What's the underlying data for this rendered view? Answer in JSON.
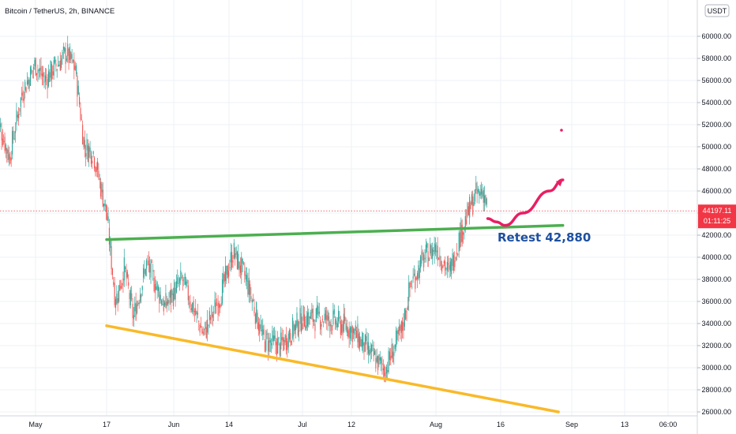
{
  "header": {
    "title": "Bitcoin / TetherUS, 2h, BINANCE"
  },
  "currency_badge": "USDT",
  "price_tag": {
    "price": "44197.11",
    "countdown": "01:11:25",
    "color": "#f23645"
  },
  "annotation": {
    "text": "Retest 42,880"
  },
  "colors": {
    "up_candle": "#26a69a",
    "down_candle": "#ef5350",
    "green_line": "#4caf50",
    "yellow_line": "#f9b928",
    "drawing": "#e91e63",
    "annotation_text": "#1e50a0"
  },
  "chart_data": {
    "type": "candlestick",
    "title": "Bitcoin / TetherUS, 2h, BINANCE",
    "y_unit": "USDT",
    "ylim": [
      26000,
      62000
    ],
    "y_ticks": [
      "26000.00",
      "28000.00",
      "30000.00",
      "32000.00",
      "34000.00",
      "36000.00",
      "38000.00",
      "40000.00",
      "42000.00",
      "44000.00",
      "46000.00",
      "48000.00",
      "50000.00",
      "52000.00",
      "54000.00",
      "56000.00",
      "58000.00",
      "60000.00"
    ],
    "x_ticks": [
      "May",
      "17",
      "Jun",
      "14",
      "Jul",
      "12",
      "Aug",
      "16",
      "Sep",
      "13",
      "06:00"
    ],
    "last_price": 44197.11,
    "price_path": [
      {
        "date": "2021-04-22",
        "price": 53000
      },
      {
        "date": "2021-04-25",
        "price": 49000
      },
      {
        "date": "2021-04-28",
        "price": 55000
      },
      {
        "date": "2021-05-01",
        "price": 57500
      },
      {
        "date": "2021-05-03",
        "price": 56000
      },
      {
        "date": "2021-05-05",
        "price": 57000
      },
      {
        "date": "2021-05-08",
        "price": 58500
      },
      {
        "date": "2021-05-10",
        "price": 57000
      },
      {
        "date": "2021-05-12",
        "price": 50000
      },
      {
        "date": "2021-05-14",
        "price": 49500
      },
      {
        "date": "2021-05-17",
        "price": 44000
      },
      {
        "date": "2021-05-19",
        "price": 36000
      },
      {
        "date": "2021-05-21",
        "price": 39000
      },
      {
        "date": "2021-05-23",
        "price": 34500
      },
      {
        "date": "2021-05-26",
        "price": 39500
      },
      {
        "date": "2021-05-30",
        "price": 35500
      },
      {
        "date": "2021-06-03",
        "price": 38000
      },
      {
        "date": "2021-06-08",
        "price": 33000
      },
      {
        "date": "2021-06-12",
        "price": 36500
      },
      {
        "date": "2021-06-15",
        "price": 40500
      },
      {
        "date": "2021-06-18",
        "price": 38000
      },
      {
        "date": "2021-06-22",
        "price": 32500
      },
      {
        "date": "2021-06-26",
        "price": 32000
      },
      {
        "date": "2021-07-01",
        "price": 34500
      },
      {
        "date": "2021-07-06",
        "price": 34500
      },
      {
        "date": "2021-07-12",
        "price": 33500
      },
      {
        "date": "2021-07-16",
        "price": 31500
      },
      {
        "date": "2021-07-20",
        "price": 29800
      },
      {
        "date": "2021-07-24",
        "price": 33500
      },
      {
        "date": "2021-07-26",
        "price": 37500
      },
      {
        "date": "2021-07-29",
        "price": 39800
      },
      {
        "date": "2021-08-01",
        "price": 41000
      },
      {
        "date": "2021-08-04",
        "price": 38500
      },
      {
        "date": "2021-08-07",
        "price": 42500
      },
      {
        "date": "2021-08-10",
        "price": 45500
      },
      {
        "date": "2021-08-12",
        "price": 46000
      },
      {
        "date": "2021-08-13",
        "price": 44197
      }
    ],
    "trendlines": [
      {
        "color": "#4caf50",
        "points": [
          {
            "date": "2021-05-17",
            "price": 41600
          },
          {
            "date": "2021-08-30",
            "price": 42880
          }
        ]
      },
      {
        "color": "#f9b928",
        "points": [
          {
            "date": "2021-05-17",
            "price": 33800
          },
          {
            "date": "2021-08-29",
            "price": 26000
          }
        ]
      }
    ],
    "projection": {
      "color": "#e91e63",
      "points": [
        {
          "date": "2021-08-13",
          "price": 43500
        },
        {
          "date": "2021-08-15",
          "price": 43200
        },
        {
          "date": "2021-08-17",
          "price": 42880
        },
        {
          "date": "2021-08-21",
          "price": 44000
        },
        {
          "date": "2021-08-27",
          "price": 46000
        },
        {
          "date": "2021-08-30",
          "price": 47000
        }
      ]
    }
  }
}
